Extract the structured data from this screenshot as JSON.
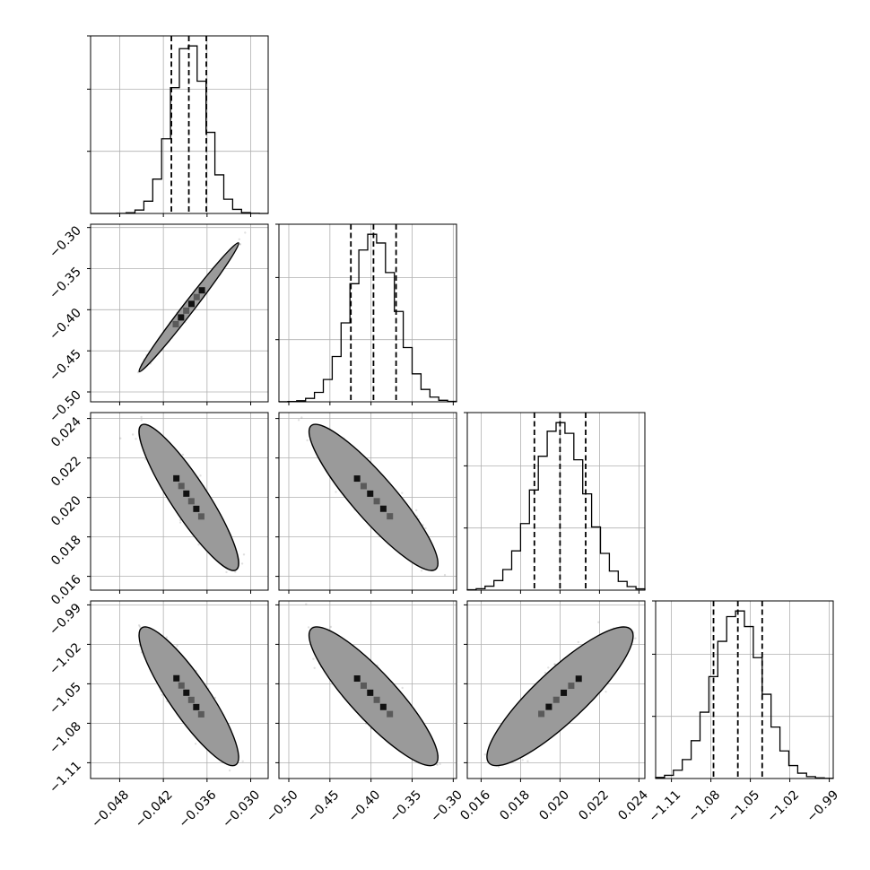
{
  "chart_data": {
    "type": "corner",
    "parameters": [
      {
        "mean": -0.0385,
        "sd": 0.0024,
        "q16": -0.0409,
        "q50": -0.0385,
        "q84": -0.0361,
        "lim": [
          -0.052,
          -0.0276
        ],
        "ticks": [
          -0.048,
          -0.042,
          -0.036,
          -0.03
        ],
        "tick_labels": [
          "−0.048",
          "−0.042",
          "−0.036",
          "−0.030"
        ]
      },
      {
        "mean": -0.397,
        "sd": 0.0275,
        "q16": -0.4245,
        "q50": -0.397,
        "q84": -0.3695,
        "lim": [
          -0.512,
          -0.296
        ],
        "ticks": [
          -0.5,
          -0.45,
          -0.4,
          -0.35,
          -0.3
        ],
        "tick_labels": [
          "−0.50",
          "−0.45",
          "−0.40",
          "−0.35",
          "−0.30"
        ]
      },
      {
        "mean": 0.02,
        "sd": 0.0013,
        "q16": 0.0187,
        "q50": 0.02,
        "q84": 0.0213,
        "lim": [
          0.0153,
          0.0243
        ],
        "ticks": [
          0.016,
          0.018,
          0.02,
          0.022,
          0.024
        ],
        "tick_labels": [
          "0.016",
          "0.018",
          "0.020",
          "0.022",
          "0.024"
        ]
      },
      {
        "mean": -1.0595,
        "sd": 0.0185,
        "q16": -1.078,
        "q50": -1.0595,
        "q84": -1.041,
        "lim": [
          -1.122,
          -0.987
        ],
        "ticks": [
          -1.11,
          -1.08,
          -1.05,
          -1.02,
          -0.99
        ],
        "tick_labels": [
          "−1.11",
          "−1.08",
          "−1.05",
          "−1.02",
          "−0.99"
        ]
      }
    ],
    "correlations": [
      [
        1.0,
        0.99,
        -0.9,
        -0.88
      ],
      [
        0.99,
        1.0,
        -0.9,
        -0.88
      ],
      [
        -0.9,
        -0.9,
        1.0,
        0.87
      ],
      [
        -0.88,
        -0.88,
        0.87,
        1.0
      ]
    ],
    "quantiles": [
      0.16,
      0.5,
      0.84
    ],
    "histogram_bins": 20,
    "samples_per_panel": 1100,
    "grid": true,
    "colors": {
      "line": "#000000",
      "grid": "#b0b0b0",
      "density": "#000000",
      "background": "#ffffff"
    }
  }
}
